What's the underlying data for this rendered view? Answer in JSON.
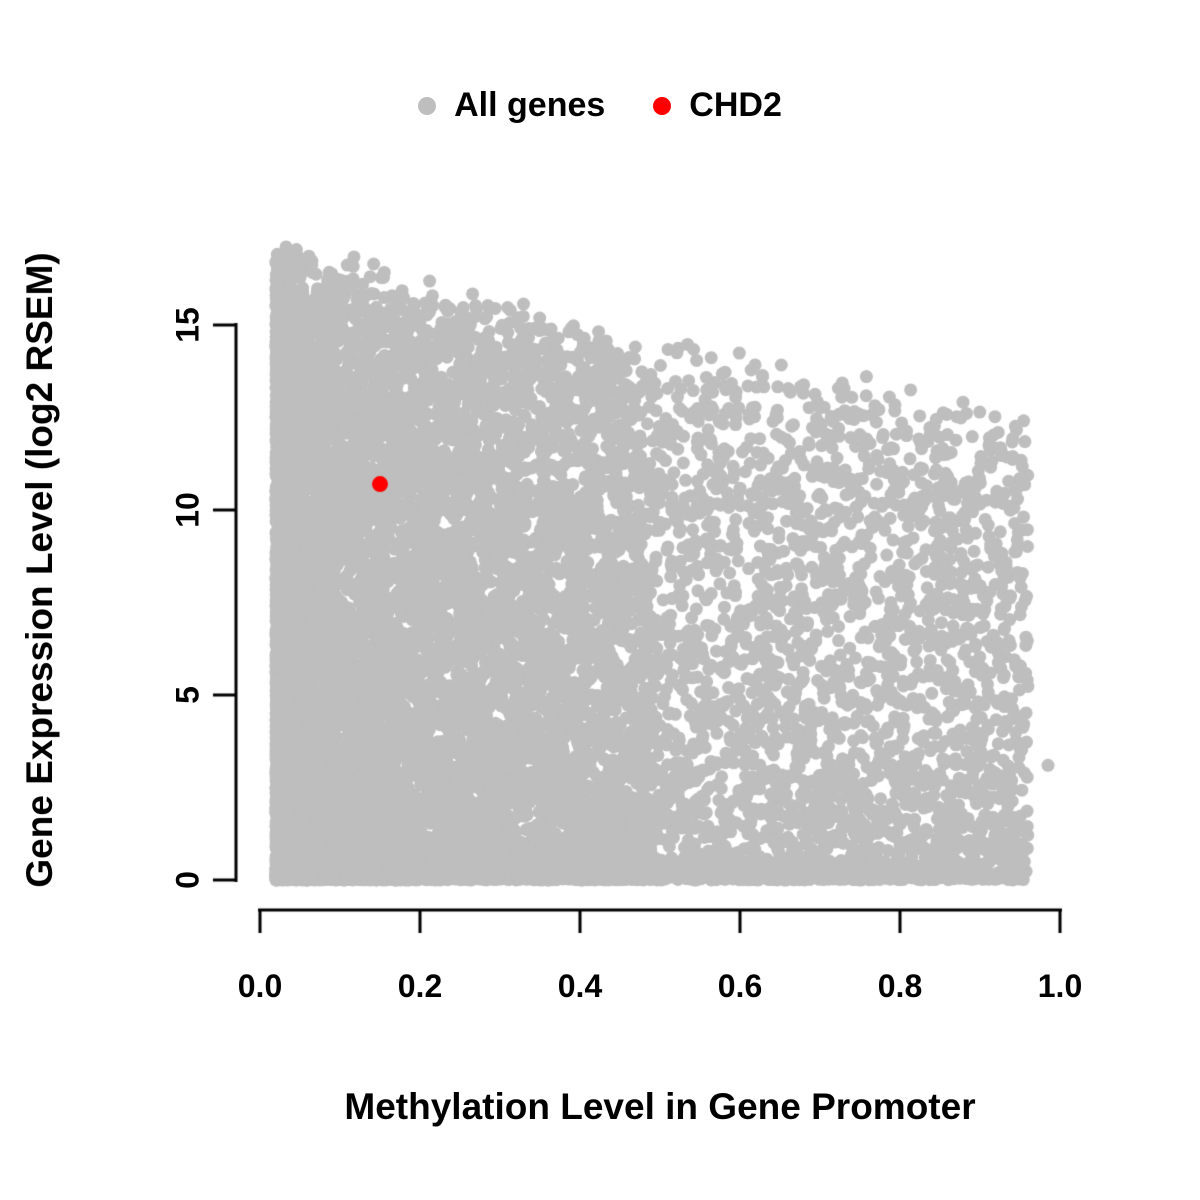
{
  "figure": {
    "background": "#ffffff",
    "text_color": "#000000"
  },
  "legend": {
    "position": "top-center",
    "items": [
      {
        "label": "All genes",
        "color": "#bebebe"
      },
      {
        "label": "CHD2",
        "color": "#ff0000"
      }
    ]
  },
  "chart_data": {
    "type": "scatter",
    "title": "",
    "xlabel": "Methylation Level in Gene Promoter",
    "ylabel": "Gene Expression Level (log2 RSEM)",
    "xlim": [
      0.0,
      1.0
    ],
    "ylim": [
      0,
      15
    ],
    "x_tick_values": [
      0.0,
      0.2,
      0.4,
      0.6,
      0.8,
      1.0
    ],
    "x_tick_labels": [
      "0.0",
      "0.2",
      "0.4",
      "0.6",
      "0.8",
      "1.0"
    ],
    "y_tick_values": [
      0,
      5,
      10,
      15
    ],
    "y_tick_labels": [
      "0",
      "5",
      "10",
      "15"
    ],
    "grid": false,
    "legend_position": "top-center",
    "series": [
      {
        "name": "All genes",
        "marker_color": "#bebebe",
        "kind": "dense-cloud",
        "approx_point_count": 13000,
        "x_range": [
          0.02,
          0.96
        ],
        "y_range": [
          0,
          16.6
        ],
        "upper_envelope": {
          "y_at_x0": 16.6,
          "y_at_x1": 11.7
        },
        "outlier_points": [
          [
            0.985,
            3.1
          ]
        ],
        "description": "Dense cloud of genes; density highest at low promoter methylation; maximum expression declines as methylation increases; solid band of points along y=0 across the full methylation range."
      },
      {
        "name": "CHD2",
        "marker_color": "#ff0000",
        "points": [
          [
            0.15,
            10.7
          ]
        ]
      }
    ]
  }
}
